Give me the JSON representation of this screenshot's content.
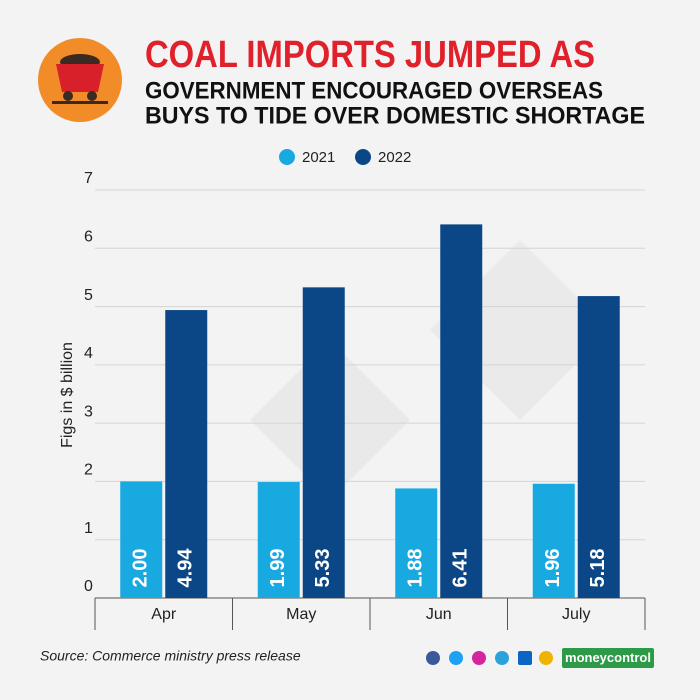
{
  "chart_data": {
    "type": "bar",
    "title": "COAL IMPORTS JUMPED AS",
    "subtitle": [
      "GOVERNMENT ENCOURAGED OVERSEAS",
      "BUYS TO TIDE OVER DOMESTIC SHORTAGE"
    ],
    "y_label": "Figs in $ billion",
    "categories": [
      "Apr",
      "May",
      "Jun",
      "July"
    ],
    "series": [
      {
        "name": "2021",
        "color": "#19a9e1",
        "values": [
          2.0,
          1.99,
          1.88,
          1.96
        ],
        "value_labels": [
          "2.00",
          "1.99",
          "1.88",
          "1.96"
        ]
      },
      {
        "name": "2022",
        "color": "#0b4787",
        "values": [
          4.94,
          5.33,
          6.41,
          5.18
        ],
        "value_labels": [
          "4.94",
          "5.33",
          "6.41",
          "5.18"
        ]
      }
    ],
    "ylim": [
      0,
      7
    ],
    "yticks": [
      0,
      1,
      2,
      3,
      4,
      5,
      6,
      7
    ],
    "grid": true,
    "source": "Source: Commerce ministry press release",
    "brand": "moneycontrol"
  }
}
